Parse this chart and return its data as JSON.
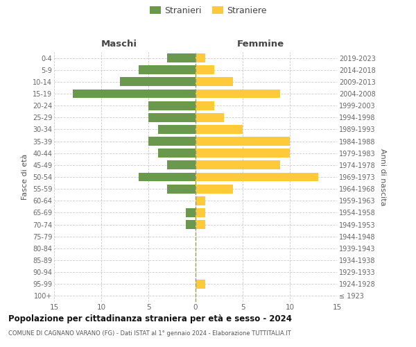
{
  "age_groups": [
    "100+",
    "95-99",
    "90-94",
    "85-89",
    "80-84",
    "75-79",
    "70-74",
    "65-69",
    "60-64",
    "55-59",
    "50-54",
    "45-49",
    "40-44",
    "35-39",
    "30-34",
    "25-29",
    "20-24",
    "15-19",
    "10-14",
    "5-9",
    "0-4"
  ],
  "birth_years": [
    "≤ 1923",
    "1924-1928",
    "1929-1933",
    "1934-1938",
    "1939-1943",
    "1944-1948",
    "1949-1953",
    "1954-1958",
    "1959-1963",
    "1964-1968",
    "1969-1973",
    "1974-1978",
    "1979-1983",
    "1984-1988",
    "1989-1993",
    "1994-1998",
    "1999-2003",
    "2004-2008",
    "2009-2013",
    "2014-2018",
    "2019-2023"
  ],
  "maschi": [
    0,
    0,
    0,
    0,
    0,
    0,
    1,
    1,
    0,
    3,
    6,
    3,
    4,
    5,
    4,
    5,
    5,
    13,
    8,
    6,
    3
  ],
  "femmine": [
    0,
    1,
    0,
    0,
    0,
    0,
    1,
    1,
    1,
    4,
    13,
    9,
    10,
    10,
    5,
    3,
    2,
    9,
    4,
    2,
    1
  ],
  "male_color": "#6a994e",
  "female_color": "#ffca3a",
  "xlim": 15,
  "title": "Popolazione per cittadinanza straniera per età e sesso - 2024",
  "subtitle": "COMUNE DI CAGNANO VARANO (FG) - Dati ISTAT al 1° gennaio 2024 - Elaborazione TUTTITALIA.IT",
  "ylabel_left": "Fasce di età",
  "ylabel_right": "Anni di nascita",
  "legend_stranieri": "Stranieri",
  "legend_straniere": "Straniere",
  "maschi_label": "Maschi",
  "femmine_label": "Femmine",
  "bg_color": "#ffffff",
  "grid_color": "#cccccc",
  "bar_height": 0.75
}
